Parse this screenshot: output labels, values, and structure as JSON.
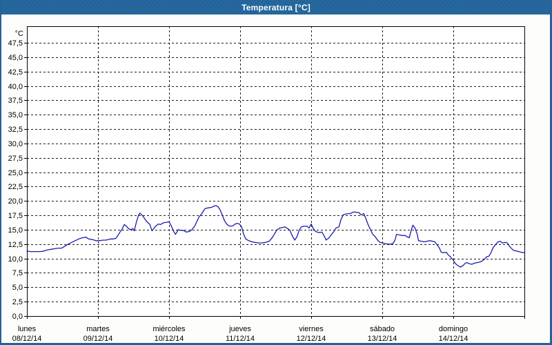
{
  "window": {
    "title": "Temperatura [°C]"
  },
  "colors": {
    "titlebar": "#20639a",
    "border": "#20639a",
    "background": "#fdfdfb",
    "plot_background": "#ffffff",
    "grid": "#1a1a1a",
    "frame": "#000000",
    "text": "#000000",
    "line": "#1a1aaa"
  },
  "chart_data": {
    "type": "line",
    "title": "Temperatura [°C]",
    "grid": "dashed",
    "legend": "none",
    "y_axis": {
      "label": "°C",
      "min": 0,
      "max": 47.5,
      "step": 2.5,
      "tick_labels": [
        "0,0",
        "2,5",
        "5,0",
        "7,5",
        "10,0",
        "12,5",
        "15,0",
        "17,5",
        "20,0",
        "22,5",
        "25,0",
        "27,5",
        "30,0",
        "32,5",
        "35,0",
        "37,5",
        "40,0",
        "42,5",
        "45,0",
        "47,5"
      ]
    },
    "x_axis": {
      "days": [
        {
          "name": "lunes",
          "date": "08/12/14"
        },
        {
          "name": "martes",
          "date": "09/12/14"
        },
        {
          "name": "miércoles",
          "date": "10/12/14"
        },
        {
          "name": "jueves",
          "date": "11/12/14"
        },
        {
          "name": "viernes",
          "date": "12/12/14"
        },
        {
          "name": "sábado",
          "date": "13/12/14"
        },
        {
          "name": "domingo",
          "date": "14/12/14"
        }
      ]
    },
    "series": [
      {
        "name": "Temperatura",
        "color": "#1a1aaa",
        "points": [
          [
            0.0,
            11.3
          ],
          [
            0.05,
            11.2
          ],
          [
            0.1,
            11.2
          ],
          [
            0.15,
            11.2
          ],
          [
            0.19,
            11.2
          ],
          [
            0.24,
            11.3
          ],
          [
            0.29,
            11.5
          ],
          [
            0.34,
            11.6
          ],
          [
            0.39,
            11.7
          ],
          [
            0.44,
            11.8
          ],
          [
            0.49,
            11.8
          ],
          [
            0.53,
            12.1
          ],
          [
            0.58,
            12.5
          ],
          [
            0.63,
            12.8
          ],
          [
            0.68,
            13.1
          ],
          [
            0.73,
            13.4
          ],
          [
            0.78,
            13.6
          ],
          [
            0.83,
            13.7
          ],
          [
            0.87,
            13.4
          ],
          [
            0.92,
            13.3
          ],
          [
            0.97,
            13.1
          ],
          [
            1.02,
            13.1
          ],
          [
            1.07,
            13.2
          ],
          [
            1.11,
            13.2
          ],
          [
            1.15,
            13.3
          ],
          [
            1.18,
            13.4
          ],
          [
            1.22,
            13.4
          ],
          [
            1.25,
            13.5
          ],
          [
            1.28,
            14.0
          ],
          [
            1.31,
            14.6
          ],
          [
            1.34,
            15.1
          ],
          [
            1.37,
            15.9
          ],
          [
            1.4,
            15.6
          ],
          [
            1.43,
            15.2
          ],
          [
            1.46,
            15.0
          ],
          [
            1.49,
            15.2
          ],
          [
            1.51,
            14.8
          ],
          [
            1.54,
            16.3
          ],
          [
            1.57,
            17.5
          ],
          [
            1.59,
            17.9
          ],
          [
            1.63,
            17.4
          ],
          [
            1.68,
            16.5
          ],
          [
            1.73,
            15.9
          ],
          [
            1.76,
            14.8
          ],
          [
            1.81,
            15.6
          ],
          [
            1.85,
            16.0
          ],
          [
            1.88,
            15.9
          ],
          [
            1.92,
            16.2
          ],
          [
            1.97,
            16.3
          ],
          [
            2.0,
            16.4
          ],
          [
            2.03,
            15.7
          ],
          [
            2.07,
            14.6
          ],
          [
            2.09,
            14.2
          ],
          [
            2.13,
            15.0
          ],
          [
            2.16,
            14.9
          ],
          [
            2.2,
            14.9
          ],
          [
            2.24,
            14.6
          ],
          [
            2.29,
            14.7
          ],
          [
            2.32,
            15.0
          ],
          [
            2.36,
            15.6
          ],
          [
            2.39,
            16.4
          ],
          [
            2.42,
            17.2
          ],
          [
            2.46,
            17.8
          ],
          [
            2.49,
            18.4
          ],
          [
            2.51,
            18.7
          ],
          [
            2.55,
            18.8
          ],
          [
            2.6,
            18.9
          ],
          [
            2.63,
            19.1
          ],
          [
            2.66,
            19.2
          ],
          [
            2.69,
            19.0
          ],
          [
            2.72,
            18.4
          ],
          [
            2.75,
            17.5
          ],
          [
            2.78,
            16.6
          ],
          [
            2.81,
            16.0
          ],
          [
            2.84,
            15.7
          ],
          [
            2.87,
            15.6
          ],
          [
            2.9,
            15.7
          ],
          [
            2.93,
            16.0
          ],
          [
            2.96,
            16.1
          ],
          [
            2.99,
            16.0
          ],
          [
            3.02,
            15.5
          ],
          [
            3.05,
            14.2
          ],
          [
            3.08,
            13.4
          ],
          [
            3.12,
            13.1
          ],
          [
            3.17,
            12.9
          ],
          [
            3.21,
            12.8
          ],
          [
            3.26,
            12.7
          ],
          [
            3.31,
            12.7
          ],
          [
            3.36,
            12.8
          ],
          [
            3.41,
            13.0
          ],
          [
            3.45,
            13.6
          ],
          [
            3.49,
            14.4
          ],
          [
            3.52,
            15.0
          ],
          [
            3.56,
            15.3
          ],
          [
            3.6,
            15.4
          ],
          [
            3.63,
            15.5
          ],
          [
            3.67,
            15.2
          ],
          [
            3.7,
            14.9
          ],
          [
            3.74,
            13.8
          ],
          [
            3.77,
            13.2
          ],
          [
            3.8,
            13.8
          ],
          [
            3.83,
            14.9
          ],
          [
            3.86,
            15.5
          ],
          [
            3.9,
            15.6
          ],
          [
            3.94,
            15.6
          ],
          [
            3.97,
            15.3
          ],
          [
            4.0,
            16.0
          ],
          [
            4.03,
            15.2
          ],
          [
            4.06,
            14.7
          ],
          [
            4.11,
            14.5
          ],
          [
            4.15,
            14.6
          ],
          [
            4.18,
            14.0
          ],
          [
            4.21,
            13.2
          ],
          [
            4.25,
            13.6
          ],
          [
            4.28,
            14.1
          ],
          [
            4.32,
            14.7
          ],
          [
            4.35,
            15.3
          ],
          [
            4.39,
            15.5
          ],
          [
            4.42,
            16.8
          ],
          [
            4.45,
            17.6
          ],
          [
            4.48,
            17.7
          ],
          [
            4.52,
            17.8
          ],
          [
            4.55,
            17.8
          ],
          [
            4.58,
            18.0
          ],
          [
            4.61,
            18.1
          ],
          [
            4.64,
            18.0
          ],
          [
            4.67,
            18.0
          ],
          [
            4.7,
            17.6
          ],
          [
            4.74,
            17.8
          ],
          [
            4.77,
            16.9
          ],
          [
            4.8,
            15.9
          ],
          [
            4.84,
            14.9
          ],
          [
            4.86,
            14.3
          ],
          [
            4.9,
            13.8
          ],
          [
            4.94,
            13.1
          ],
          [
            4.97,
            12.8
          ],
          [
            5.0,
            12.7
          ],
          [
            5.04,
            12.6
          ],
          [
            5.08,
            12.5
          ],
          [
            5.12,
            12.5
          ],
          [
            5.15,
            12.6
          ],
          [
            5.18,
            13.2
          ],
          [
            5.2,
            14.2
          ],
          [
            5.24,
            14.1
          ],
          [
            5.28,
            14.0
          ],
          [
            5.32,
            14.0
          ],
          [
            5.35,
            13.8
          ],
          [
            5.38,
            13.6
          ],
          [
            5.41,
            15.0
          ],
          [
            5.43,
            15.8
          ],
          [
            5.46,
            15.3
          ],
          [
            5.49,
            14.3
          ],
          [
            5.51,
            13.1
          ],
          [
            5.55,
            13.0
          ],
          [
            5.59,
            12.9
          ],
          [
            5.63,
            13.0
          ],
          [
            5.67,
            13.1
          ],
          [
            5.71,
            13.0
          ],
          [
            5.74,
            12.9
          ],
          [
            5.77,
            12.4
          ],
          [
            5.8,
            11.9
          ],
          [
            5.83,
            11.1
          ],
          [
            5.87,
            11.0
          ],
          [
            5.9,
            11.1
          ],
          [
            5.93,
            10.6
          ],
          [
            5.96,
            10.3
          ],
          [
            6.0,
            9.7
          ],
          [
            6.03,
            9.1
          ],
          [
            6.06,
            8.8
          ],
          [
            6.1,
            8.5
          ],
          [
            6.13,
            8.7
          ],
          [
            6.17,
            9.2
          ],
          [
            6.19,
            9.3
          ],
          [
            6.22,
            9.1
          ],
          [
            6.26,
            9.0
          ],
          [
            6.3,
            9.2
          ],
          [
            6.34,
            9.3
          ],
          [
            6.38,
            9.4
          ],
          [
            6.41,
            9.6
          ],
          [
            6.44,
            9.9
          ],
          [
            6.47,
            10.3
          ],
          [
            6.5,
            10.4
          ],
          [
            6.53,
            11.0
          ],
          [
            6.56,
            11.9
          ],
          [
            6.6,
            12.5
          ],
          [
            6.63,
            12.9
          ],
          [
            6.66,
            13.0
          ],
          [
            6.69,
            12.7
          ],
          [
            6.73,
            12.8
          ],
          [
            6.76,
            12.7
          ],
          [
            6.79,
            12.1
          ],
          [
            6.83,
            11.6
          ],
          [
            6.85,
            11.4
          ],
          [
            6.89,
            11.3
          ],
          [
            6.92,
            11.2
          ],
          [
            6.95,
            11.1
          ],
          [
            7.0,
            11.0
          ]
        ]
      }
    ]
  }
}
